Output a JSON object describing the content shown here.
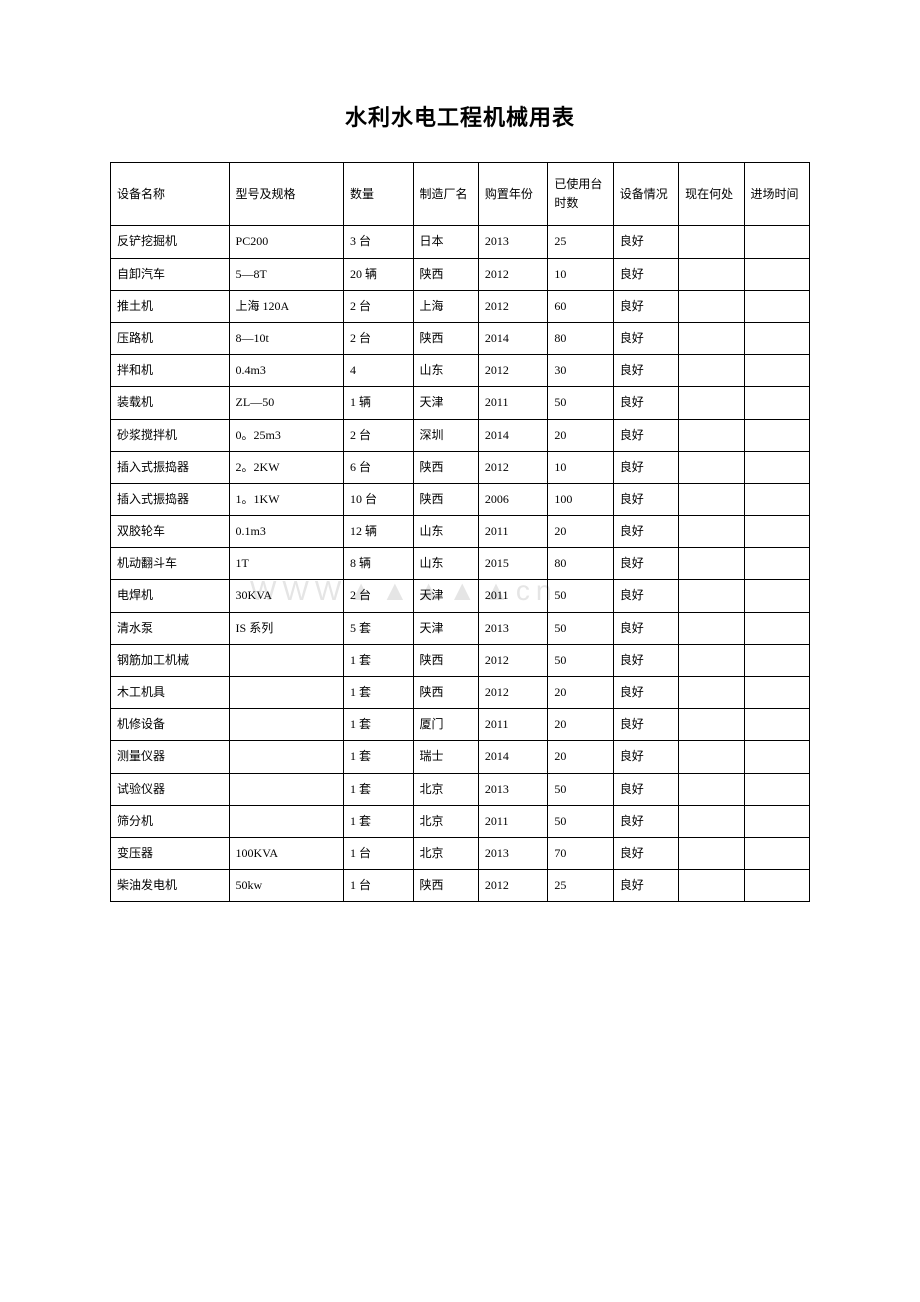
{
  "title": "水利水电工程机械用表",
  "watermark": "WWW▲▲▲▲▲cn",
  "table": {
    "columns": [
      "设备名称",
      "型号及规格",
      "数量",
      "制造厂名",
      "购置年份",
      "已使用台时数",
      "设备情况",
      "现在何处",
      "进场时间"
    ],
    "rows": [
      [
        "反铲挖掘机",
        "PC200",
        "3 台",
        "日本",
        "2013",
        "25",
        "良好",
        "",
        ""
      ],
      [
        "自卸汽车",
        "5—8T",
        "20 辆",
        "陕西",
        "2012",
        "10",
        "良好",
        "",
        ""
      ],
      [
        "推土机",
        "上海 120A",
        "2 台",
        "上海",
        "2012",
        "60",
        "良好",
        "",
        ""
      ],
      [
        "压路机",
        "8—10t",
        "2 台",
        "陕西",
        "2014",
        "80",
        "良好",
        "",
        ""
      ],
      [
        "拌和机",
        "0.4m3",
        "4",
        "山东",
        "2012",
        "30",
        "良好",
        "",
        ""
      ],
      [
        "装载机",
        "ZL—50",
        "1 辆",
        "天津",
        "2011",
        "50",
        "良好",
        "",
        ""
      ],
      [
        "砂浆搅拌机",
        "0。25m3",
        "2 台",
        "深圳",
        "2014",
        "20",
        "良好",
        "",
        ""
      ],
      [
        "插入式振捣器",
        "2。2KW",
        "6 台",
        "陕西",
        "2012",
        "10",
        "良好",
        "",
        ""
      ],
      [
        "插入式振捣器",
        "1。1KW",
        "10 台",
        "陕西",
        "2006",
        "100",
        "良好",
        "",
        ""
      ],
      [
        "双胶轮车",
        "0.1m3",
        "12 辆",
        "山东",
        "2011",
        "20",
        "良好",
        "",
        ""
      ],
      [
        "机动翻斗车",
        "1T",
        "8 辆",
        "山东",
        "2015",
        "80",
        "良好",
        "",
        ""
      ],
      [
        "电焊机",
        "30KVA",
        "2 台",
        "天津",
        "2011",
        "50",
        "良好",
        "",
        ""
      ],
      [
        "清水泵",
        "IS 系列",
        "5 套",
        "天津",
        "2013",
        "50",
        "良好",
        "",
        ""
      ],
      [
        "钢筋加工机械",
        "",
        "1 套",
        "陕西",
        "2012",
        "50",
        "良好",
        "",
        ""
      ],
      [
        "木工机具",
        "",
        "1 套",
        "陕西",
        "2012",
        "20",
        "良好",
        "",
        ""
      ],
      [
        "机修设备",
        "",
        "1 套",
        "厦门",
        "2011",
        "20",
        "良好",
        "",
        ""
      ],
      [
        "测量仪器",
        "",
        "1 套",
        "瑞士",
        "2014",
        "20",
        "良好",
        "",
        ""
      ],
      [
        "试验仪器",
        "",
        "1 套",
        "北京",
        "2013",
        "50",
        "良好",
        "",
        ""
      ],
      [
        "筛分机",
        "",
        "1 套",
        "北京",
        "2011",
        "50",
        "良好",
        "",
        ""
      ],
      [
        "变压器",
        "100KVA",
        "1 台",
        "北京",
        "2013",
        "70",
        "良好",
        "",
        ""
      ],
      [
        "柴油发电机",
        "50kw",
        "1 台",
        "陕西",
        "2012",
        "25",
        "良好",
        "",
        ""
      ]
    ]
  }
}
